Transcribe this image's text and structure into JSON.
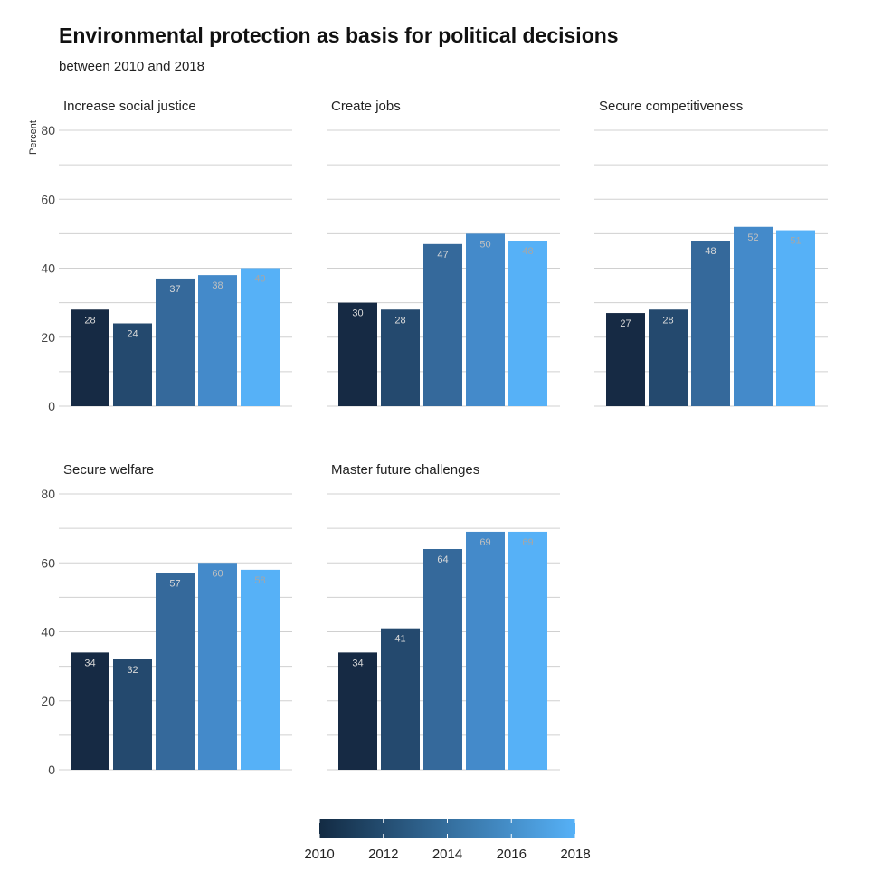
{
  "header": {
    "title": "Environmental protection as basis for political decisions",
    "subtitle": "between 2010 and 2018"
  },
  "chart_data": {
    "type": "bar",
    "title": "Environmental protection as basis for political decisions",
    "subtitle": "between 2010 and 2018",
    "ylabel": "Percent",
    "xlabel": "",
    "ylim": [
      0,
      80
    ],
    "yticks": [
      0,
      20,
      40,
      60,
      80
    ],
    "grid": true,
    "categories": [
      "2010",
      "2012",
      "2014",
      "2016",
      "2018"
    ],
    "colors": [
      "#162a44",
      "#24496e",
      "#35699b",
      "#448aca",
      "#56b1f7"
    ],
    "label_colors": [
      "#d9d9d9",
      "#d9d9d9",
      "#d9d9d9",
      "#bfbfbf",
      "#a6a6a6"
    ],
    "panels": [
      {
        "title": "Increase social justice",
        "values": [
          28,
          24,
          37,
          38,
          40
        ]
      },
      {
        "title": "Create jobs",
        "values": [
          30,
          28,
          47,
          50,
          48
        ]
      },
      {
        "title": "Secure competitiveness",
        "values": [
          27,
          28,
          48,
          52,
          51
        ]
      },
      {
        "title": "Secure welfare",
        "values": [
          34,
          32,
          57,
          60,
          58
        ]
      },
      {
        "title": "Master future challenges",
        "values": [
          34,
          41,
          64,
          69,
          69
        ]
      }
    ],
    "legend": {
      "position": "bottom",
      "type": "colorbar",
      "ticks": [
        "2010",
        "2012",
        "2014",
        "2016",
        "2018"
      ],
      "gradient": [
        "#132b43",
        "#56b1f7"
      ]
    }
  }
}
